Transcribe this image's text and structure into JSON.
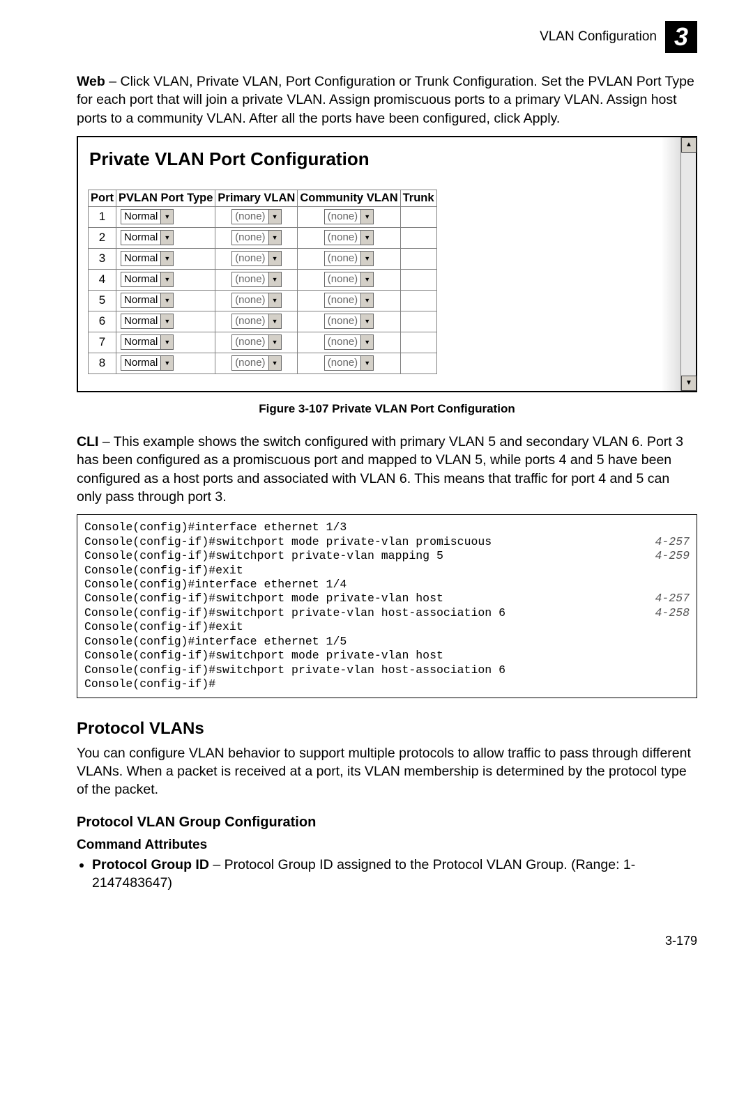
{
  "header": {
    "title": "VLAN Configuration",
    "chapter": "3"
  },
  "web_paragraph": {
    "lead": "Web",
    "text": " – Click VLAN, Private VLAN, Port Configuration or Trunk Configuration. Set the PVLAN Port Type for each port that will join a private VLAN. Assign promiscuous ports to a primary VLAN. Assign host ports to a community VLAN. After all the ports have been configured, click Apply."
  },
  "panel": {
    "title": "Private VLAN Port Configuration",
    "columns": [
      "Port",
      "PVLAN Port Type",
      "Primary VLAN",
      "Community VLAN",
      "Trunk"
    ],
    "rows": [
      {
        "port": "1",
        "type": "Normal",
        "primary": "(none)",
        "community": "(none)",
        "trunk": ""
      },
      {
        "port": "2",
        "type": "Normal",
        "primary": "(none)",
        "community": "(none)",
        "trunk": ""
      },
      {
        "port": "3",
        "type": "Normal",
        "primary": "(none)",
        "community": "(none)",
        "trunk": ""
      },
      {
        "port": "4",
        "type": "Normal",
        "primary": "(none)",
        "community": "(none)",
        "trunk": ""
      },
      {
        "port": "5",
        "type": "Normal",
        "primary": "(none)",
        "community": "(none)",
        "trunk": ""
      },
      {
        "port": "6",
        "type": "Normal",
        "primary": "(none)",
        "community": "(none)",
        "trunk": ""
      },
      {
        "port": "7",
        "type": "Normal",
        "primary": "(none)",
        "community": "(none)",
        "trunk": ""
      },
      {
        "port": "8",
        "type": "Normal",
        "primary": "(none)",
        "community": "(none)",
        "trunk": ""
      }
    ]
  },
  "figure_caption": "Figure 3-107  Private VLAN Port Configuration",
  "cli_paragraph": {
    "lead": "CLI",
    "text": " – This example shows the switch configured with primary VLAN 5 and secondary VLAN 6. Port 3 has been configured as a promiscuous port and mapped to VLAN 5, while ports 4 and 5 have been configured as a host ports and associated with VLAN 6. This means that traffic for port 4 and 5 can only pass through port 3."
  },
  "cli_lines": [
    {
      "cmd": "Console(config)#interface ethernet 1/3",
      "ref": ""
    },
    {
      "cmd": "Console(config-if)#switchport mode private-vlan promiscuous",
      "ref": "4-257"
    },
    {
      "cmd": "Console(config-if)#switchport private-vlan mapping 5",
      "ref": "4-259"
    },
    {
      "cmd": "Console(config-if)#exit",
      "ref": ""
    },
    {
      "cmd": "Console(config)#interface ethernet 1/4",
      "ref": ""
    },
    {
      "cmd": "Console(config-if)#switchport mode private-vlan host",
      "ref": "4-257"
    },
    {
      "cmd": "Console(config-if)#switchport private-vlan host-association 6",
      "ref": "4-258"
    },
    {
      "cmd": "Console(config-if)#exit",
      "ref": ""
    },
    {
      "cmd": "Console(config)#interface ethernet 1/5",
      "ref": ""
    },
    {
      "cmd": "Console(config-if)#switchport mode private-vlan host",
      "ref": ""
    },
    {
      "cmd": "Console(config-if)#switchport private-vlan host-association 6",
      "ref": ""
    },
    {
      "cmd": "Console(config-if)#",
      "ref": ""
    }
  ],
  "h2": "Protocol VLANs",
  "protocol_para": "You can configure VLAN behavior to support multiple protocols to allow traffic to pass through different VLANs. When a packet is received at a port, its VLAN membership is determined by the protocol type of the packet.",
  "h3": "Protocol VLAN Group Configuration",
  "h4": "Command Attributes",
  "bullet": {
    "lead": "Protocol Group ID",
    "text": " – Protocol Group ID assigned to the Protocol VLAN Group. (Range: 1-2147483647)"
  },
  "page_number": "3-179"
}
